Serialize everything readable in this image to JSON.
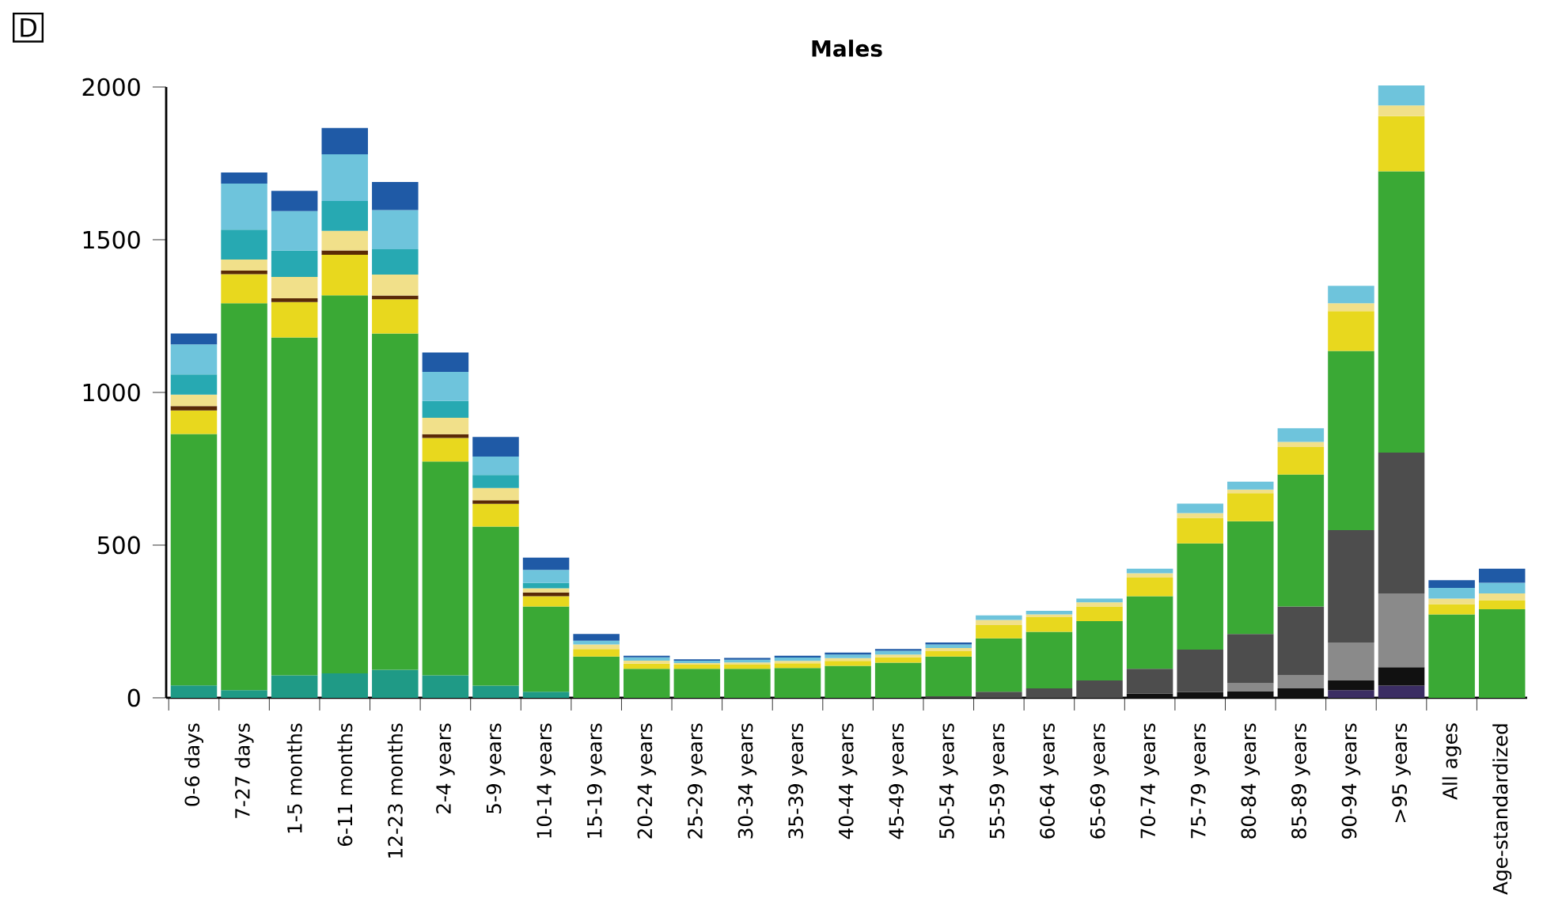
{
  "chart_data": {
    "type": "bar",
    "stacked": true,
    "title": "Males",
    "annotations": [
      "D"
    ],
    "categories": [
      "0-6 days",
      "7-27 days",
      "1-5 months",
      "6-11 months",
      "12-23 months",
      "2-4 years",
      "5-9 years",
      "10-14 years",
      "15-19 years",
      "20-24 years",
      "25-29 years",
      "30-34 years",
      "35-39 years",
      "40-44 years",
      "45-49 years",
      "50-54 years",
      "55-59 years",
      "60-64 years",
      "65-69 years",
      "70-74 years",
      "75-79 years",
      "80-84 years",
      "85-89 years",
      "90-94 years",
      ">95 years",
      "All ages",
      "Age-standardized"
    ],
    "ylim": [
      0,
      2000
    ],
    "yticks": [
      0,
      500,
      1000,
      1500,
      2000
    ],
    "series": [
      {
        "color": "#1f9a86",
        "values": [
          41,
          25,
          74,
          80,
          92,
          74,
          40,
          20,
          null,
          null,
          null,
          null,
          null,
          null,
          null,
          null,
          null,
          null,
          null,
          null,
          null,
          null,
          null,
          null,
          null,
          null,
          null
        ]
      },
      {
        "color": "#3b2d63",
        "values": [
          null,
          null,
          null,
          null,
          null,
          null,
          null,
          null,
          null,
          null,
          null,
          null,
          null,
          null,
          null,
          null,
          null,
          null,
          null,
          null,
          null,
          null,
          null,
          25,
          40,
          null,
          null
        ]
      },
      {
        "color": "#111111",
        "values": [
          null,
          null,
          null,
          null,
          null,
          null,
          null,
          null,
          null,
          null,
          null,
          null,
          null,
          null,
          null,
          null,
          null,
          null,
          null,
          14,
          19,
          22,
          31,
          32,
          60,
          null,
          null
        ]
      },
      {
        "color": "#8a8a8a",
        "values": [
          null,
          null,
          null,
          null,
          null,
          null,
          null,
          null,
          null,
          null,
          null,
          null,
          null,
          null,
          null,
          null,
          null,
          null,
          null,
          null,
          null,
          26,
          43,
          124,
          242,
          null,
          null
        ]
      },
      {
        "color": "#4d4d4d",
        "values": [
          null,
          null,
          null,
          null,
          null,
          null,
          null,
          null,
          null,
          null,
          null,
          null,
          null,
          null,
          null,
          5,
          20,
          31,
          57,
          81,
          139,
          161,
          225,
          368,
          461,
          null,
          null
        ]
      },
      {
        "color": "#3aa935",
        "values": [
          823,
          1267,
          1106,
          1238,
          1101,
          700,
          521,
          279,
          135,
          95,
          95,
          95,
          98,
          105,
          115,
          130,
          175,
          185,
          194,
          238,
          348,
          369,
          432,
          587,
          921,
          273,
          290
        ]
      },
      {
        "color": "#e8d81e",
        "values": [
          77,
          95,
          116,
          133,
          112,
          77,
          74,
          34,
          25,
          17,
          14,
          14,
          15,
          16,
          18,
          18,
          43,
          48,
          48,
          61,
          83,
          92,
          90,
          130,
          181,
          34,
          30
        ]
      },
      {
        "color": "#5a2a06",
        "values": [
          14,
          12,
          12,
          14,
          12,
          12,
          12,
          12,
          null,
          null,
          null,
          null,
          null,
          null,
          null,
          null,
          null,
          null,
          null,
          null,
          null,
          null,
          null,
          null,
          null,
          null,
          null
        ]
      },
      {
        "color": "#f1e08a",
        "values": [
          38,
          36,
          70,
          64,
          69,
          54,
          40,
          14,
          15,
          10,
          5,
          7,
          8,
          9,
          9,
          10,
          17,
          9,
          14,
          14,
          16,
          12,
          17,
          26,
          35,
          18,
          22
        ]
      },
      {
        "color": "#27a9b2",
        "values": [
          66,
          98,
          86,
          98,
          83,
          55,
          43,
          17,
          null,
          null,
          null,
          null,
          null,
          null,
          null,
          null,
          null,
          null,
          null,
          null,
          null,
          null,
          null,
          null,
          null,
          null,
          null
        ]
      },
      {
        "color": "#6ec4dc",
        "values": [
          98,
          151,
          130,
          153,
          128,
          95,
          60,
          43,
          12,
          11,
          8,
          9,
          11,
          12,
          12,
          12,
          15,
          12,
          12,
          15,
          31,
          26,
          45,
          57,
          65,
          35,
          35
        ]
      },
      {
        "color": "#1f5aa6",
        "values": [
          36,
          36,
          66,
          86,
          92,
          64,
          64,
          40,
          22,
          5,
          4,
          6,
          6,
          6,
          6,
          6,
          null,
          null,
          null,
          null,
          null,
          null,
          null,
          null,
          null,
          25,
          46
        ]
      }
    ]
  }
}
